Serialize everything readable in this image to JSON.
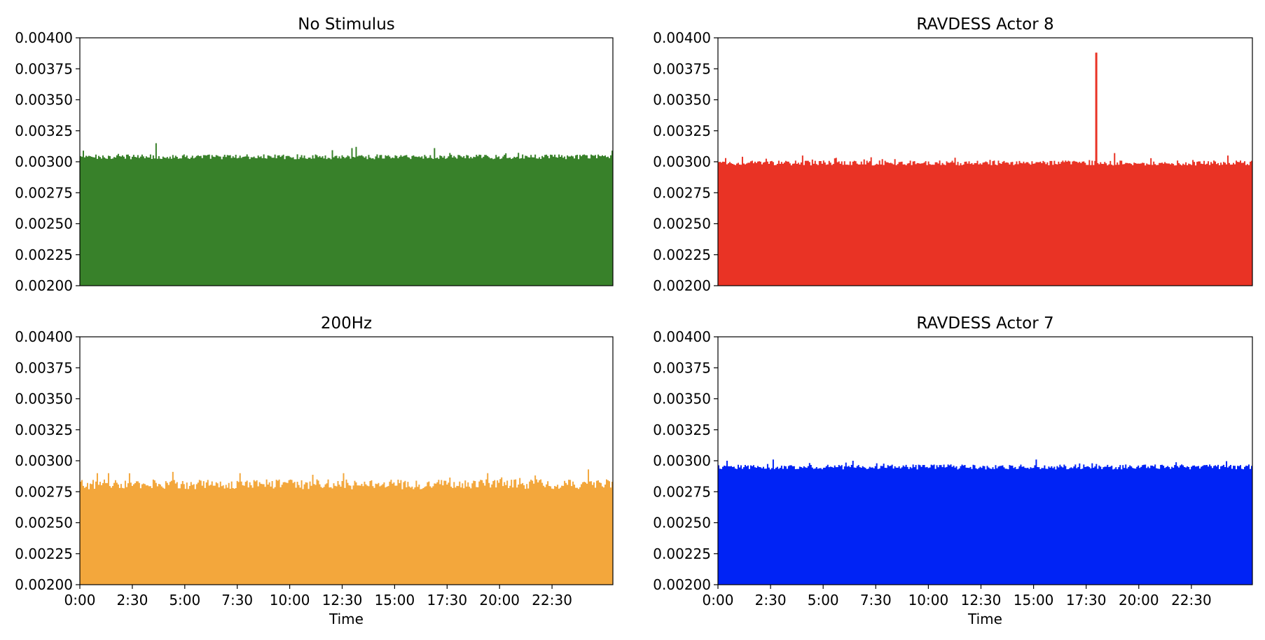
{
  "figure": {
    "background": "#ffffff"
  },
  "chart_data": [
    {
      "type": "bar",
      "title": "No Stimulus",
      "xlabel": "",
      "ylabel": "",
      "ylim": [
        0.002,
        0.004
      ],
      "yticks": [
        "0.00200",
        "0.00225",
        "0.00250",
        "0.00275",
        "0.00300",
        "0.00325",
        "0.00350",
        "0.00375",
        "0.00400"
      ],
      "xlim": [
        0,
        25.4
      ],
      "xticks": [],
      "grid": false,
      "color": "#38812a",
      "series": [
        {
          "x_start": 0,
          "x_end": 25.4,
          "baseline": 0.00304,
          "noise": 2e-05,
          "spikes": [
            [
              3.6,
              0.00315
            ],
            [
              13.1,
              0.00312
            ],
            [
              16.9,
              0.00311
            ],
            [
              12.9,
              0.00311
            ],
            [
              0.1,
              0.00309
            ],
            [
              25.3,
              0.00309
            ],
            [
              25.6,
              0.00309
            ]
          ]
        }
      ]
    },
    {
      "type": "bar",
      "title": "RAVDESS Actor 8",
      "xlabel": "",
      "ylabel": "",
      "ylim": [
        0.002,
        0.004
      ],
      "yticks": [
        "0.00200",
        "0.00225",
        "0.00250",
        "0.00275",
        "0.00300",
        "0.00325",
        "0.00350",
        "0.00375",
        "0.00400"
      ],
      "xlim": [
        0,
        25.4
      ],
      "xticks": [],
      "grid": false,
      "color": "#e93325",
      "series": [
        {
          "x_start": 0,
          "x_end": 25.4,
          "baseline": 0.00299,
          "noise": 2e-05,
          "spikes": [
            [
              17.98,
              0.00388
            ],
            [
              4.0,
              0.00305
            ],
            [
              18.8,
              0.00307
            ],
            [
              24.2,
              0.00305
            ],
            [
              0.3,
              0.00303
            ],
            [
              1.1,
              0.00304
            ]
          ]
        }
      ]
    },
    {
      "type": "bar",
      "title": "200Hz",
      "xlabel": "Time",
      "ylabel": "",
      "ylim": [
        0.002,
        0.004
      ],
      "yticks": [
        "0.00200",
        "0.00225",
        "0.00250",
        "0.00275",
        "0.00300",
        "0.00325",
        "0.00350",
        "0.00375",
        "0.00400"
      ],
      "xlim": [
        0,
        25.4
      ],
      "xticks": [
        "0:00",
        "2:30",
        "5:00",
        "7:30",
        "10:00",
        "12:30",
        "15:00",
        "17:30",
        "20:00",
        "22:30"
      ],
      "grid": false,
      "color": "#f3a73c",
      "series": [
        {
          "x_start": 0,
          "x_end": 25.4,
          "baseline": 0.00281,
          "noise": 4e-05,
          "spikes": [
            [
              24.2,
              0.00293
            ],
            [
              7.6,
              0.0029
            ],
            [
              12.5,
              0.0029
            ],
            [
              19.4,
              0.0029
            ],
            [
              0.8,
              0.0029
            ],
            [
              1.3,
              0.0029
            ]
          ]
        }
      ]
    },
    {
      "type": "bar",
      "title": "RAVDESS Actor 7",
      "xlabel": "Time",
      "ylabel": "",
      "ylim": [
        0.002,
        0.004
      ],
      "yticks": [
        "0.00200",
        "0.00225",
        "0.00250",
        "0.00275",
        "0.00300",
        "0.00325",
        "0.00350",
        "0.00375",
        "0.00400"
      ],
      "xlim": [
        0,
        25.4
      ],
      "xticks": [
        "0:00",
        "2:30",
        "5:00",
        "7:30",
        "10:00",
        "12:30",
        "15:00",
        "17:30",
        "20:00",
        "22:30"
      ],
      "grid": false,
      "color": "#0023f5",
      "series": [
        {
          "x_start": 0,
          "x_end": 25.4,
          "baseline": 0.00295,
          "noise": 2e-05,
          "spikes": [
            [
              2.6,
              0.00301
            ],
            [
              15.1,
              0.00301
            ],
            [
              0.4,
              0.003
            ],
            [
              6.4,
              0.003
            ]
          ]
        }
      ]
    }
  ]
}
